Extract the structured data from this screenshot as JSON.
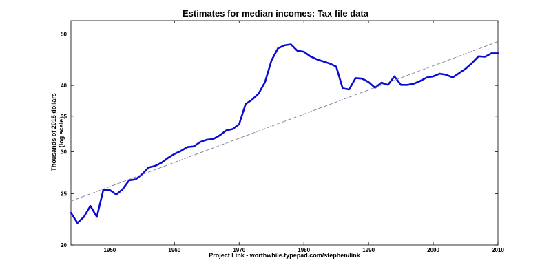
{
  "chart_data": {
    "type": "line",
    "title": "Estimates for median incomes: Tax file data",
    "xlabel": "Project Link - worthwhile.typepad.com/stephen/link",
    "ylabel": [
      "Thousands of 2015 dollars",
      "(log scale)"
    ],
    "xlim": [
      1944,
      2010
    ],
    "ylim": [
      20,
      53
    ],
    "yscale": "log",
    "xticks": [
      1950,
      1960,
      1970,
      1980,
      1990,
      2000,
      2010
    ],
    "yticks": [
      20,
      25,
      30,
      35,
      40,
      50
    ],
    "grid": false,
    "series": [
      {
        "style": "solid",
        "color": "#0a0ad2",
        "x": [
          1944,
          1945,
          1946,
          1947,
          1948,
          1949,
          1950,
          1951,
          1952,
          1953,
          1954,
          1955,
          1956,
          1957,
          1958,
          1959,
          1960,
          1961,
          1962,
          1963,
          1964,
          1965,
          1966,
          1967,
          1968,
          1969,
          1970,
          1971,
          1972,
          1973,
          1974,
          1975,
          1976,
          1977,
          1978,
          1979,
          1980,
          1981,
          1982,
          1983,
          1984,
          1985,
          1986,
          1987,
          1988,
          1989,
          1990,
          1991,
          1992,
          1993,
          1994,
          1995,
          1996,
          1997,
          1998,
          1999,
          2000,
          2001,
          2002,
          2003,
          2004,
          2005,
          2006,
          2007,
          2008,
          2009,
          2010
        ],
        "y": [
          23.0,
          22.0,
          22.6,
          23.7,
          22.6,
          25.4,
          25.4,
          24.9,
          25.5,
          26.5,
          26.6,
          27.2,
          28.0,
          28.2,
          28.6,
          29.2,
          29.7,
          30.1,
          30.6,
          30.7,
          31.3,
          31.6,
          31.7,
          32.2,
          32.9,
          33.1,
          33.8,
          36.9,
          37.6,
          38.6,
          40.6,
          44.6,
          47.0,
          47.6,
          47.8,
          46.5,
          46.3,
          45.4,
          44.8,
          44.4,
          44.0,
          43.4,
          39.5,
          39.3,
          41.3,
          41.2,
          40.6,
          39.6,
          40.5,
          40.1,
          41.6,
          40.1,
          40.1,
          40.3,
          40.8,
          41.4,
          41.6,
          42.1,
          41.9,
          41.4,
          42.2,
          43.0,
          44.1,
          45.4,
          45.3,
          46.0,
          46.0
        ]
      },
      {
        "style": "dashed",
        "color": "#7a7a9a",
        "x": [
          1944,
          2010
        ],
        "y": [
          24.2,
          48.4
        ]
      }
    ]
  }
}
